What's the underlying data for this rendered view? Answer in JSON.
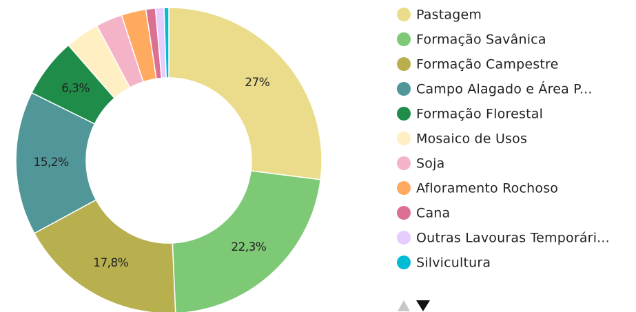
{
  "chart_data": {
    "type": "donut",
    "categories": [
      "Pastagem",
      "Formação Savânica",
      "Formação Campestre",
      "Campo Alagado e Área P...",
      "Formação Florestal",
      "Mosaico de Usos",
      "Soja",
      "Afloramento Rochoso",
      "Cana",
      "Outras Lavouras Temporári...",
      "Silvicultura"
    ],
    "values": [
      27,
      22.3,
      17.8,
      15.2,
      6.3,
      3.6,
      2.8,
      2.6,
      1.0,
      0.9,
      0.5
    ],
    "value_labels": [
      "27%",
      "22,3%",
      "17,8%",
      "15,2%",
      "6,3%",
      null,
      null,
      null,
      null,
      null,
      null
    ],
    "colors": [
      "#ebdc8b",
      "#7dc975",
      "#b8af4f",
      "#519799",
      "#1f8d49",
      "#ffefc3",
      "#f5b3c8",
      "#ffaa5f",
      "#db7093",
      "#e6ccff",
      "#00bcd4"
    ],
    "legend": "right"
  }
}
